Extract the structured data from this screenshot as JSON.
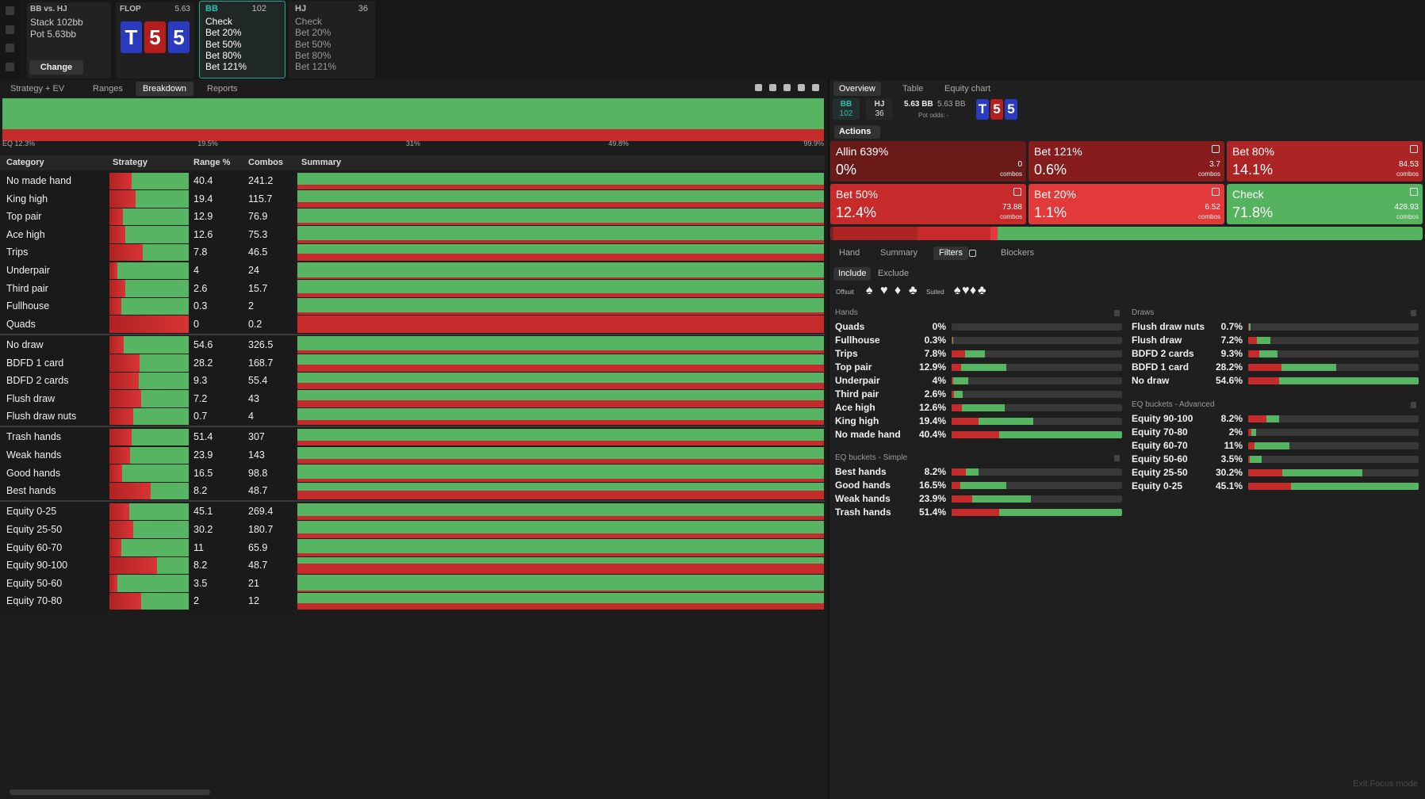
{
  "spot": {
    "title": "BB vs. HJ",
    "stack": "Stack 102bb",
    "pot": "Pot 5.63bb",
    "change": "Change"
  },
  "flop": {
    "label": "FLOP",
    "pot": "5.63",
    "cards": [
      {
        "rank": "T",
        "color": "#2a3bc0"
      },
      {
        "rank": "5",
        "color": "#b41e1e"
      },
      {
        "rank": "5",
        "color": "#2a3bc0"
      }
    ]
  },
  "players": [
    {
      "name": "BB",
      "stack": "102",
      "active": true,
      "actions": [
        "Check",
        "Bet 20%",
        "Bet 50%",
        "Bet 80%",
        "Bet 121%"
      ]
    },
    {
      "name": "HJ",
      "stack": "36",
      "active": false,
      "actions": [
        "Check",
        "Bet 20%",
        "Bet 50%",
        "Bet 80%",
        "Bet 121%"
      ]
    }
  ],
  "left_tabs": {
    "items": [
      "Strategy + EV",
      "Ranges",
      "Breakdown",
      "Reports"
    ],
    "active": 2
  },
  "strip": {
    "labels": [
      "EQ 12.3%",
      "19.5%",
      "31%",
      "49.8%",
      "99.9%"
    ]
  },
  "breakdown": {
    "columns": [
      "Category",
      "Strategy",
      "Range %",
      "Combos",
      "Summary"
    ],
    "groups": [
      {
        "rows": [
          {
            "category": "No made hand",
            "range": 40.4,
            "combos": 241.2,
            "bet": 28
          },
          {
            "category": "King high",
            "range": 19.4,
            "combos": 115.7,
            "bet": 33
          },
          {
            "category": "Top pair",
            "range": 12.9,
            "combos": 76.9,
            "bet": 17
          },
          {
            "category": "Ace high",
            "range": 12.6,
            "combos": 75.3,
            "bet": 20
          },
          {
            "category": "Trips",
            "range": 7.8,
            "combos": 46.5,
            "bet": 42
          },
          {
            "category": "Underpair",
            "range": 4,
            "combos": 24,
            "bet": 10
          },
          {
            "category": "Third pair",
            "range": 2.6,
            "combos": 15.7,
            "bet": 20
          },
          {
            "category": "Fullhouse",
            "range": 0.3,
            "combos": 2,
            "bet": 15
          },
          {
            "category": "Quads",
            "range": 0,
            "combos": 0.2,
            "bet": 100
          }
        ]
      },
      {
        "rows": [
          {
            "category": "No draw",
            "range": 54.6,
            "combos": 326.5,
            "bet": 18
          },
          {
            "category": "BDFD 1 card",
            "range": 28.2,
            "combos": 168.7,
            "bet": 38
          },
          {
            "category": "BDFD 2 cards",
            "range": 9.3,
            "combos": 55.4,
            "bet": 37
          },
          {
            "category": "Flush draw",
            "range": 7.2,
            "combos": 43,
            "bet": 40
          },
          {
            "category": "Flush draw nuts",
            "range": 0.7,
            "combos": 4,
            "bet": 30
          }
        ]
      },
      {
        "rows": [
          {
            "category": "Trash hands",
            "range": 51.4,
            "combos": 307,
            "bet": 28
          },
          {
            "category": "Weak hands",
            "range": 23.9,
            "combos": 143,
            "bet": 26
          },
          {
            "category": "Good hands",
            "range": 16.5,
            "combos": 98.8,
            "bet": 16
          },
          {
            "category": "Best hands",
            "range": 8.2,
            "combos": 48.7,
            "bet": 52
          }
        ]
      },
      {
        "rows": [
          {
            "category": "Equity 0-25",
            "range": 45.1,
            "combos": 269.4,
            "bet": 25
          },
          {
            "category": "Equity 25-50",
            "range": 30.2,
            "combos": 180.7,
            "bet": 30
          },
          {
            "category": "Equity 60-70",
            "range": 11,
            "combos": 65.9,
            "bet": 15
          },
          {
            "category": "Equity 90-100",
            "range": 8.2,
            "combos": 48.7,
            "bet": 60
          },
          {
            "category": "Equity 50-60",
            "range": 3.5,
            "combos": 21,
            "bet": 10
          },
          {
            "category": "Equity 70-80",
            "range": 2,
            "combos": 12,
            "bet": 40
          }
        ]
      }
    ]
  },
  "right_tabs": {
    "items": [
      "Overview",
      "Table",
      "Equity chart"
    ],
    "active": 0
  },
  "overview": {
    "players": [
      {
        "name": "BB",
        "stack": "102"
      },
      {
        "name": "HJ",
        "stack": "36"
      }
    ],
    "pot": "5.63 BB",
    "pot_total": "5.63 BB",
    "pot_odds": "Pot odds: -",
    "cards": [
      {
        "rank": "T",
        "color": "#2a3bc0"
      },
      {
        "rank": "5",
        "color": "#b41e1e"
      },
      {
        "rank": "5",
        "color": "#2a3bc0"
      }
    ]
  },
  "actions": {
    "label": "Actions",
    "unit": "combos",
    "items": [
      {
        "name": "Allin 639%",
        "frequency": 0,
        "frequency_label": "0%",
        "combos": 0,
        "color": "#6b1a1a"
      },
      {
        "name": "Bet 121%",
        "frequency": 0.6,
        "frequency_label": "0.6%",
        "combos": 3.7,
        "color": "#861c1c"
      },
      {
        "name": "Bet 80%",
        "frequency": 14.1,
        "frequency_label": "14.1%",
        "combos": 84.53,
        "color": "#ad2424"
      },
      {
        "name": "Bet 50%",
        "frequency": 12.4,
        "frequency_label": "12.4%",
        "combos": 73.88,
        "color": "#c72a2a"
      },
      {
        "name": "Bet 20%",
        "frequency": 1.1,
        "frequency_label": "1.1%",
        "combos": 6.52,
        "color": "#e23a3a"
      },
      {
        "name": "Check",
        "frequency": 71.8,
        "frequency_label": "71.8%",
        "combos": 428.93,
        "color": "#55b25f"
      }
    ]
  },
  "sub_tabs": {
    "items": [
      "Hand",
      "Summary",
      "Filters",
      "Blockers"
    ],
    "active": 2
  },
  "filter_modes": {
    "items": [
      "Include",
      "Exclude"
    ],
    "active": 0
  },
  "suits": {
    "offsuit_label": "Offsuit",
    "offsuit": [
      "♠",
      "♥",
      "♦",
      "♣"
    ],
    "suited_label": "Suited",
    "suited": [
      "♠",
      "♥",
      "♦",
      "♣"
    ]
  },
  "filter_sections": [
    {
      "title": "Hands",
      "rows": [
        {
          "label": "Quads",
          "value": 0,
          "value_label": "0%",
          "bet": 100
        },
        {
          "label": "Fullhouse",
          "value": 0.3,
          "value_label": "0.3%",
          "bet": 15
        },
        {
          "label": "Trips",
          "value": 7.8,
          "value_label": "7.8%",
          "bet": 42
        },
        {
          "label": "Top pair",
          "value": 12.9,
          "value_label": "12.9%",
          "bet": 17
        },
        {
          "label": "Underpair",
          "value": 4,
          "value_label": "4%",
          "bet": 10
        },
        {
          "label": "Third pair",
          "value": 2.6,
          "value_label": "2.6%",
          "bet": 20
        },
        {
          "label": "Ace high",
          "value": 12.6,
          "value_label": "12.6%",
          "bet": 20
        },
        {
          "label": "King high",
          "value": 19.4,
          "value_label": "19.4%",
          "bet": 33
        },
        {
          "label": "No made hand",
          "value": 40.4,
          "value_label": "40.4%",
          "bet": 28
        }
      ]
    },
    {
      "title": "Draws",
      "rows": [
        {
          "label": "Flush draw nuts",
          "value": 0.7,
          "value_label": "0.7%",
          "bet": 30
        },
        {
          "label": "Flush draw",
          "value": 7.2,
          "value_label": "7.2%",
          "bet": 40
        },
        {
          "label": "BDFD 2 cards",
          "value": 9.3,
          "value_label": "9.3%",
          "bet": 37
        },
        {
          "label": "BDFD 1 card",
          "value": 28.2,
          "value_label": "28.2%",
          "bet": 38
        },
        {
          "label": "No draw",
          "value": 54.6,
          "value_label": "54.6%",
          "bet": 18
        }
      ]
    },
    {
      "title": "EQ buckets - Simple",
      "rows": [
        {
          "label": "Best hands",
          "value": 8.2,
          "value_label": "8.2%",
          "bet": 52
        },
        {
          "label": "Good hands",
          "value": 16.5,
          "value_label": "16.5%",
          "bet": 16
        },
        {
          "label": "Weak hands",
          "value": 23.9,
          "value_label": "23.9%",
          "bet": 26
        },
        {
          "label": "Trash hands",
          "value": 51.4,
          "value_label": "51.4%",
          "bet": 28
        }
      ]
    },
    {
      "title": "EQ buckets - Advanced",
      "rows": [
        {
          "label": "Equity 90-100",
          "value": 8.2,
          "value_label": "8.2%",
          "bet": 60
        },
        {
          "label": "Equity 70-80",
          "value": 2,
          "value_label": "2%",
          "bet": 40
        },
        {
          "label": "Equity 60-70",
          "value": 11,
          "value_label": "11%",
          "bet": 15
        },
        {
          "label": "Equity 50-60",
          "value": 3.5,
          "value_label": "3.5%",
          "bet": 10
        },
        {
          "label": "Equity 25-50",
          "value": 30.2,
          "value_label": "30.2%",
          "bet": 30
        },
        {
          "label": "Equity 0-25",
          "value": 45.1,
          "value_label": "45.1%",
          "bet": 25
        }
      ]
    }
  ],
  "exit": "Exit Focus mode"
}
